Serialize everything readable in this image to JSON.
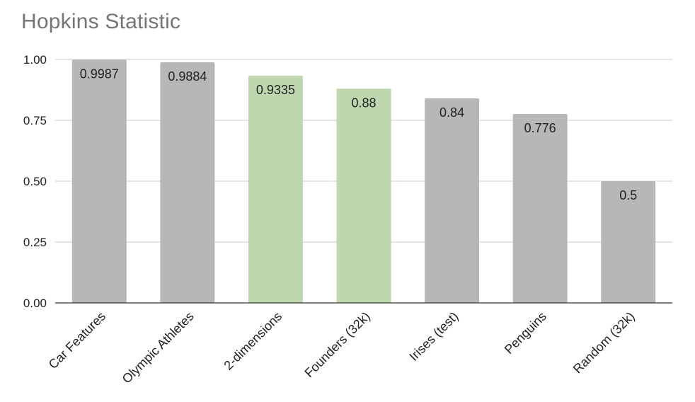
{
  "chart_data": {
    "type": "bar",
    "title": "Hopkins Statistic",
    "xlabel": "",
    "ylabel": "",
    "ylim": [
      0,
      1.0
    ],
    "yticks": [
      "0.00",
      "0.25",
      "0.50",
      "0.75",
      "1.00"
    ],
    "grid": true,
    "legend": "none",
    "categories": [
      "Car Features",
      "Olympic Athletes",
      "2-dimensions",
      "Founders (32k)",
      "Irises (test)",
      "Penguins",
      "Random (32k)"
    ],
    "values": [
      0.9987,
      0.9884,
      0.9335,
      0.88,
      0.84,
      0.776,
      0.5
    ],
    "value_labels": [
      "0.9987",
      "0.9884",
      "0.9335",
      "0.88",
      "0.84",
      "0.776",
      "0.5"
    ],
    "bar_colors": [
      "#b7b7b7",
      "#b7b7b7",
      "#bed7ae",
      "#bed7ae",
      "#b7b7b7",
      "#b7b7b7",
      "#b7b7b7"
    ],
    "colors": {
      "gridline": "#cccccc",
      "axis": "#333333",
      "title": "#757575"
    }
  }
}
